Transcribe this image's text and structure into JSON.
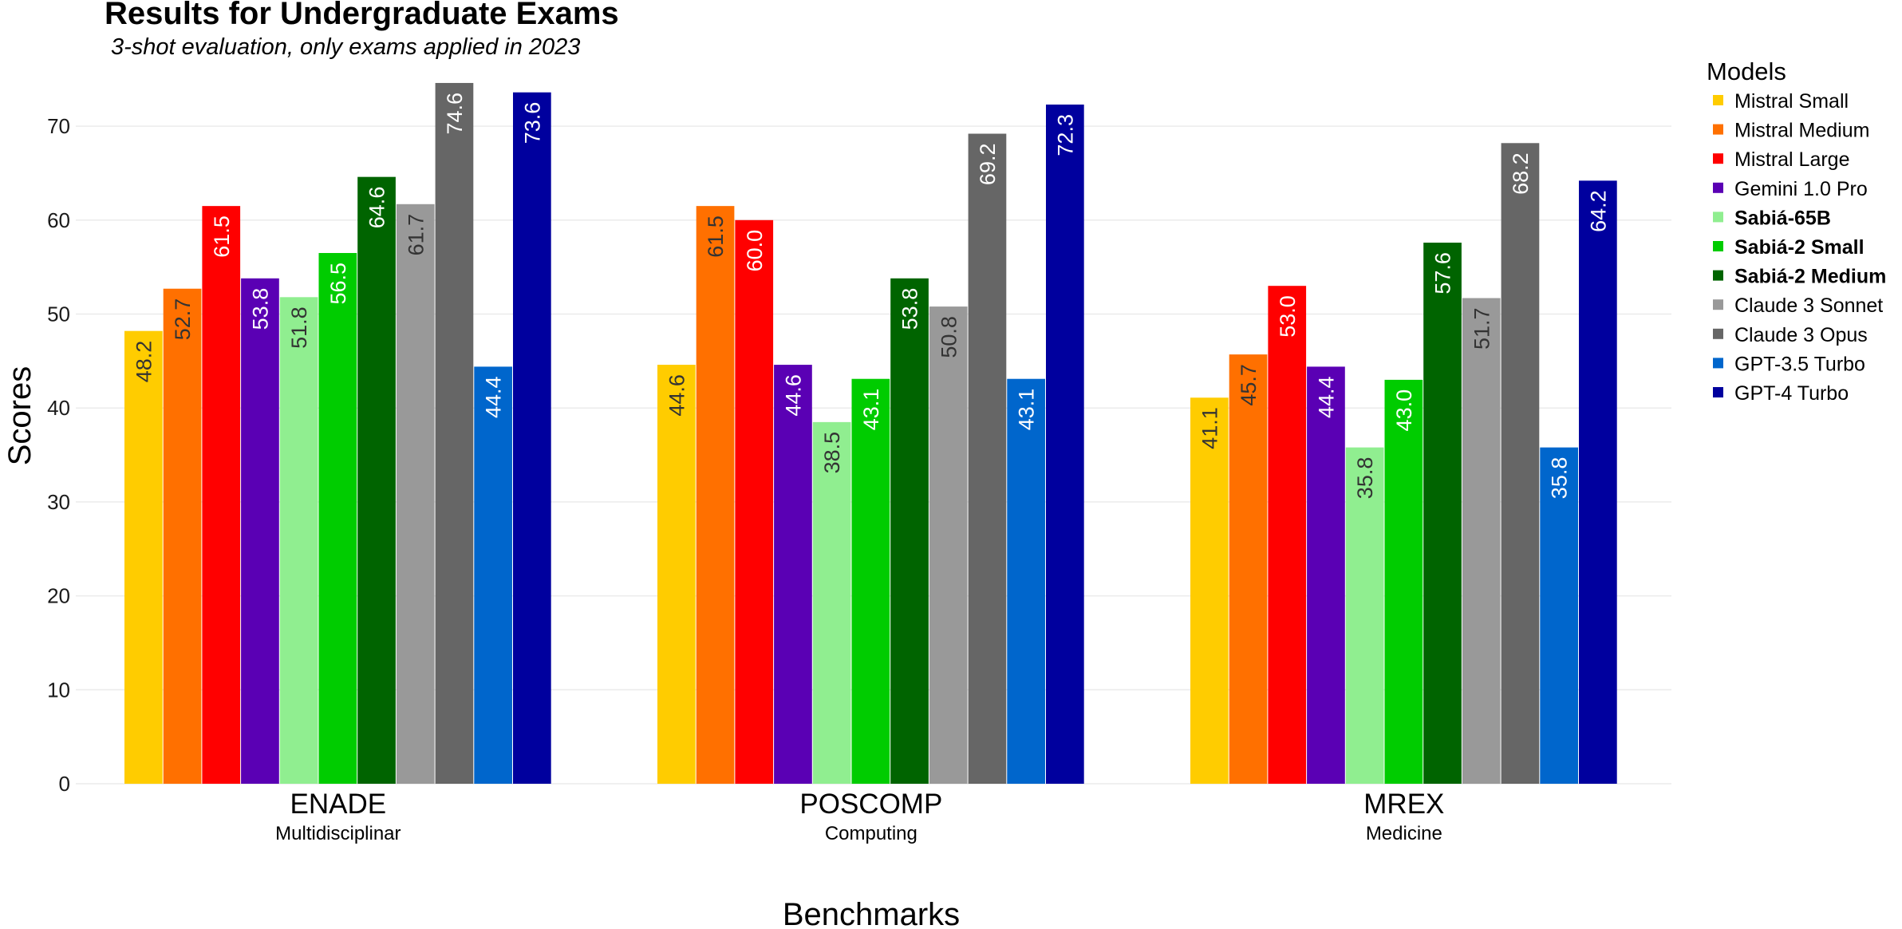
{
  "chart_data": {
    "type": "bar",
    "title": "Results for Undergraduate Exams",
    "subtitle": "3-shot evaluation, only exams applied in 2023",
    "xlabel": "Benchmarks",
    "ylabel": "Scores",
    "ylim": [
      0,
      75
    ],
    "yticks": [
      0,
      10,
      20,
      30,
      40,
      50,
      60,
      70
    ],
    "grid": true,
    "legend_title": "Models",
    "legend_position": "right",
    "categories": [
      "ENADE",
      "POSCOMP",
      "MREX"
    ],
    "category_subtitles": [
      "Multidisciplinar",
      "Computing",
      "Medicine"
    ],
    "series": [
      {
        "name": "Mistral Small",
        "color": "#FFCC00",
        "label_color": "#333333",
        "bold": false,
        "values": [
          48.2,
          44.6,
          41.1
        ]
      },
      {
        "name": "Mistral Medium",
        "color": "#FF7000",
        "label_color": "#333333",
        "bold": false,
        "values": [
          52.7,
          61.5,
          45.7
        ]
      },
      {
        "name": "Mistral Large",
        "color": "#FF0000",
        "label_color": "#ffffff",
        "bold": false,
        "values": [
          61.5,
          60.0,
          53.0
        ]
      },
      {
        "name": "Gemini 1.0 Pro",
        "color": "#5A00B4",
        "label_color": "#ffffff",
        "bold": false,
        "values": [
          53.8,
          44.6,
          44.4
        ]
      },
      {
        "name": "Sabiá-65B",
        "color": "#90EE90",
        "label_color": "#333333",
        "bold": true,
        "values": [
          51.8,
          38.5,
          35.8
        ]
      },
      {
        "name": "Sabiá-2 Small",
        "color": "#00CC00",
        "label_color": "#ffffff",
        "bold": true,
        "values": [
          56.5,
          43.1,
          43.0
        ]
      },
      {
        "name": "Sabiá-2 Medium",
        "color": "#006400",
        "label_color": "#ffffff",
        "bold": true,
        "values": [
          64.6,
          53.8,
          57.6
        ]
      },
      {
        "name": "Claude 3 Sonnet",
        "color": "#999999",
        "label_color": "#333333",
        "bold": false,
        "values": [
          61.7,
          50.8,
          51.7
        ]
      },
      {
        "name": "Claude 3 Opus",
        "color": "#666666",
        "label_color": "#ffffff",
        "bold": false,
        "values": [
          74.6,
          69.2,
          68.2
        ]
      },
      {
        "name": "GPT-3.5 Turbo",
        "color": "#0066CC",
        "label_color": "#ffffff",
        "bold": false,
        "values": [
          44.4,
          43.1,
          35.8
        ]
      },
      {
        "name": "GPT-4 Turbo",
        "color": "#00009E",
        "label_color": "#ffffff",
        "bold": false,
        "values": [
          73.6,
          72.3,
          64.2
        ]
      }
    ]
  }
}
